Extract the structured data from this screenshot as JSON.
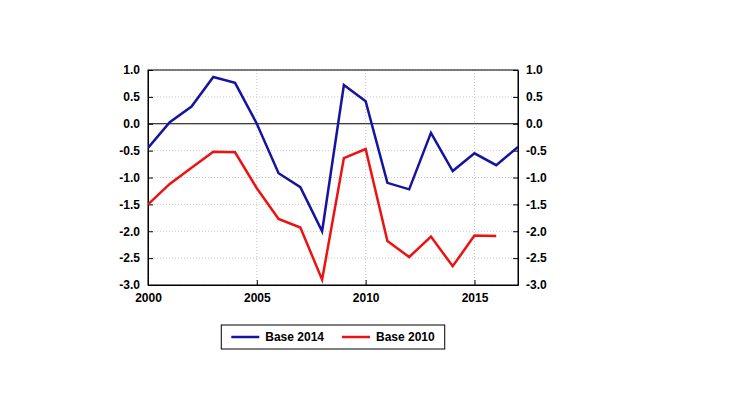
{
  "chart_data": {
    "type": "line",
    "x": [
      2000,
      2001,
      2002,
      2003,
      2004,
      2005,
      2006,
      2007,
      2008,
      2009,
      2010,
      2011,
      2012,
      2013,
      2014,
      2015,
      2016,
      2017
    ],
    "series": [
      {
        "name": "Base 2014",
        "color": "#1414a0",
        "values": [
          -0.45,
          0.03,
          0.32,
          0.87,
          0.76,
          0.0,
          -0.92,
          -1.18,
          -2.0,
          0.72,
          0.42,
          -1.1,
          -1.22,
          -0.17,
          -0.88,
          -0.55,
          -0.77,
          -0.43
        ]
      },
      {
        "name": "Base 2010",
        "color": "#ee1111",
        "values": [
          -1.5,
          -1.12,
          -0.82,
          -0.52,
          -0.53,
          -1.2,
          -1.77,
          -1.93,
          -2.9,
          -0.64,
          -0.47,
          -2.18,
          -2.48,
          -2.1,
          -2.65,
          -2.08,
          -2.09,
          null
        ]
      }
    ],
    "xlim": [
      2000,
      2017
    ],
    "xticks": [
      2000,
      2005,
      2010,
      2015
    ],
    "ylim": [
      -3.0,
      1.0
    ],
    "yticks": [
      {
        "value": -3.0,
        "label": "-3.0"
      },
      {
        "value": -2.5,
        "label": "-2.5"
      },
      {
        "value": -2.0,
        "label": "-2.0"
      },
      {
        "value": -1.5,
        "label": "-1.5"
      },
      {
        "value": -1.0,
        "label": "-1.0"
      },
      {
        "value": -0.5,
        "label": "-0.5"
      },
      {
        "value": 0.0,
        "label": "0.0"
      },
      {
        "value": 0.5,
        "label": "0.5"
      },
      {
        "value": 1.0,
        "label": "1.0"
      }
    ],
    "y2lim": [
      -3.0,
      1.0
    ],
    "y2ticks": [
      {
        "value": -3.0,
        "label": "-3.0"
      },
      {
        "value": -2.5,
        "label": "-2.5"
      },
      {
        "value": -2.0,
        "label": "-2.0"
      },
      {
        "value": -1.5,
        "label": "-1.5"
      },
      {
        "value": -1.0,
        "label": "-1.0"
      },
      {
        "value": -0.5,
        "label": "-0.5"
      },
      {
        "value": 0.0,
        "label": "0.0"
      },
      {
        "value": 0.5,
        "label": "0.5"
      },
      {
        "value": 1.0,
        "label": "1.0"
      }
    ],
    "grid": true,
    "legend": "bottom"
  }
}
